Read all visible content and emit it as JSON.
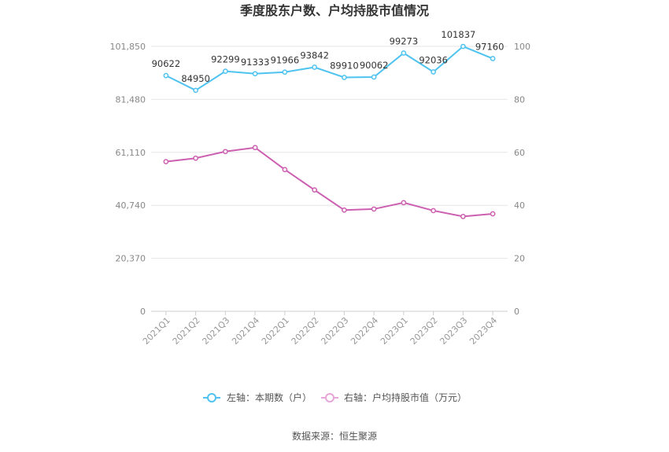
{
  "chart_data": {
    "type": "line",
    "title": "季度股东户数、户均持股市值情况",
    "categories": [
      "2021Q1",
      "2021Q2",
      "2021Q3",
      "2021Q4",
      "2022Q1",
      "2022Q2",
      "2022Q3",
      "2022Q4",
      "2023Q1",
      "2023Q2",
      "2023Q3",
      "2023Q4"
    ],
    "left_axis": {
      "min": 0,
      "max": 101850,
      "ticks": [
        "0",
        "20,370",
        "40,740",
        "61,110",
        "81,480",
        "101,850"
      ]
    },
    "right_axis": {
      "min": 0,
      "max": 100,
      "ticks": [
        "0",
        "20",
        "40",
        "60",
        "80",
        "100"
      ]
    },
    "series": [
      {
        "name": "左轴：本期数（户）",
        "axis": "left",
        "color": "#4fc3f0",
        "values": [
          90622,
          84950,
          92299,
          91333,
          91966,
          93842,
          89910,
          90062,
          99273,
          92036,
          101837,
          97160
        ],
        "labels": [
          "90622",
          "84950",
          "92299",
          "91333",
          "91966",
          "93842",
          "89910",
          "90062",
          "99273",
          "92036",
          "101837",
          "97160"
        ]
      },
      {
        "name": "右轴：户均持股市值（万元）",
        "axis": "right",
        "color": "#cc5fb0",
        "values": [
          56.5,
          57.8,
          60.3,
          61.8,
          53.5,
          45.8,
          38.2,
          38.6,
          41.0,
          38.0,
          35.8,
          36.8
        ]
      }
    ],
    "legend": "bottom-center",
    "grid": true
  },
  "source_text": "数据来源：恒生聚源"
}
